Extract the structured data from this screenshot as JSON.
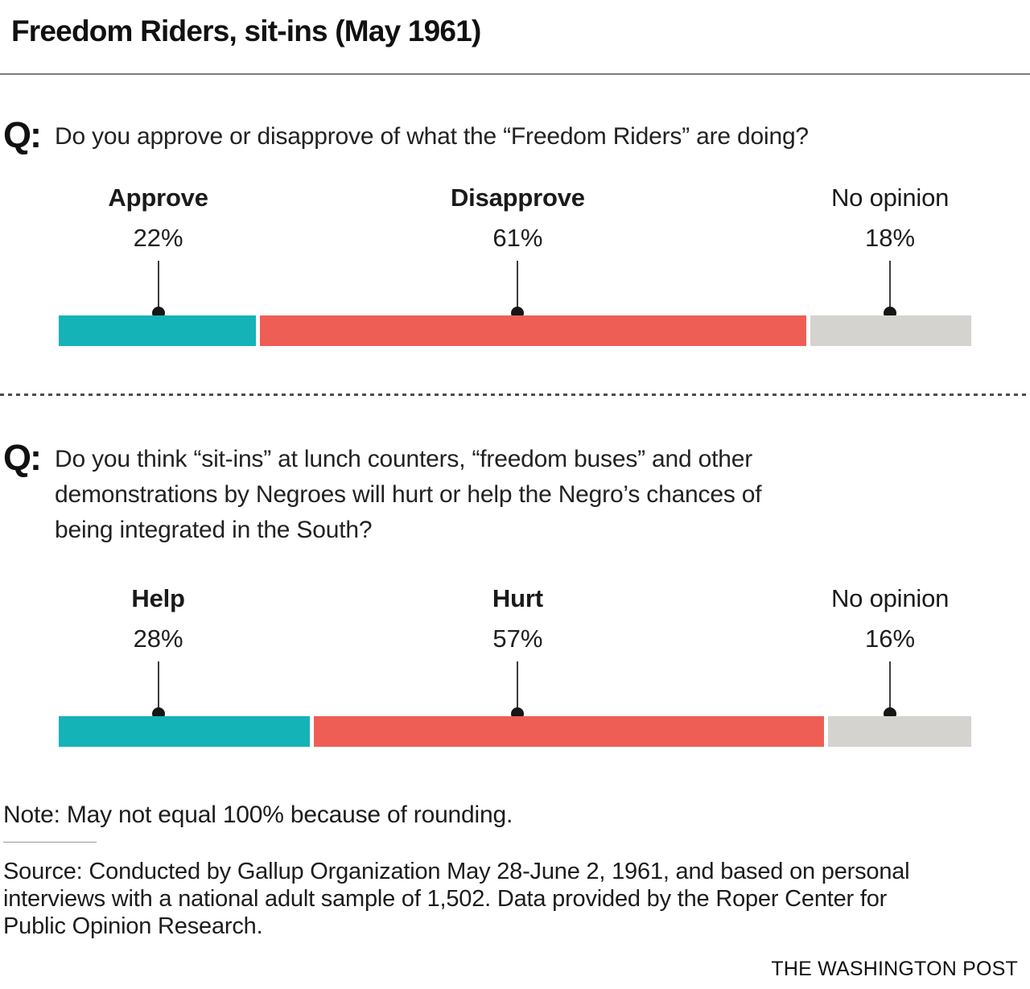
{
  "header": {
    "title": "Freedom Riders, sit-ins (May 1961)"
  },
  "questions": [
    {
      "prefix": "Q:",
      "lines": [
        "Do you approve or disapprove of what the “Freedom Riders” are doing?"
      ]
    },
    {
      "prefix": "Q:",
      "lines": [
        "Do you think “sit-ins” at lunch counters, “freedom buses” and other",
        "demonstrations by Negroes will hurt or help the Negro’s chances of",
        "being integrated in the South?"
      ]
    }
  ],
  "chart_data": [
    {
      "type": "bar",
      "orientation": "horizontal-stacked",
      "question": "Do you approve or disapprove of what the “Freedom Riders” are doing?",
      "categories": [
        "Approve",
        "Disapprove",
        "No opinion"
      ],
      "values": [
        22,
        61,
        18
      ],
      "value_labels": [
        "22%",
        "61%",
        "18%"
      ],
      "emphasis": [
        true,
        true,
        false
      ],
      "colors": [
        "#14b3b7",
        "#ef5e55",
        "#d5d3d0"
      ],
      "legend_position": "labels-above-with-callouts",
      "axis": "none"
    },
    {
      "type": "bar",
      "orientation": "horizontal-stacked",
      "question": "Do you think “sit-ins” at lunch counters, “freedom buses” and other demonstrations by Negroes will hurt or help the Negro’s chances of being integrated in the South?",
      "categories": [
        "Help",
        "Hurt",
        "No opinion"
      ],
      "values": [
        28,
        57,
        16
      ],
      "value_labels": [
        "28%",
        "57%",
        "16%"
      ],
      "emphasis": [
        true,
        true,
        false
      ],
      "colors": [
        "#14b3b7",
        "#ef5e55",
        "#d5d3d0"
      ],
      "legend_position": "labels-above-with-callouts",
      "axis": "none"
    }
  ],
  "note": "Note: May not equal 100% because of rounding.",
  "source_lines": [
    "Source: Conducted by Gallup Organization May 28-June 2, 1961, and based on personal",
    "interviews with a national adult sample of 1,502. Data provided by the Roper Center for",
    "Public Opinion Research."
  ],
  "credit": "THE WASHINGTON POST"
}
